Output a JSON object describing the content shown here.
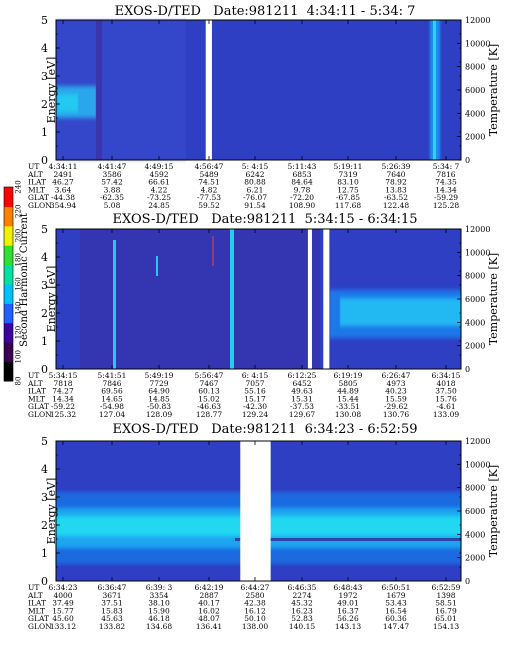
{
  "colorbar": {
    "label": "Second Harmonic Current",
    "ticks": [
      "80",
      "100",
      "120",
      "140",
      "160",
      "180",
      "200",
      "220",
      "240"
    ],
    "colors": [
      "#000000",
      "#3a0050",
      "#3c00a0",
      "#2060ff",
      "#00c0ff",
      "#00e0a0",
      "#30e030",
      "#f0f000",
      "#ff8000",
      "#ff0000"
    ]
  },
  "row_labels": [
    "UT",
    "ALT",
    "ILAT",
    "MLT",
    "GLAT",
    "GLON"
  ],
  "chart_data": [
    {
      "type": "heatmap",
      "title": "EXOS-D/TED   Date:981211  4:34:11 - 5:34: 7",
      "ylabel": "Energy [eV]",
      "y2label": "Temperature [K]",
      "ylim": [
        0,
        5
      ],
      "y2lim": [
        0,
        12000
      ],
      "yticks": [
        "0",
        "1",
        "2",
        "3",
        "4",
        "5"
      ],
      "y2ticks": [
        "0",
        "2000",
        "4000",
        "6000",
        "8000",
        "10000",
        "12000"
      ],
      "columns": [
        [
          "4:34:11",
          "2491",
          "46.27",
          "3.64",
          "-44.38",
          "354.94"
        ],
        [
          "4:41:47",
          "3586",
          "57.42",
          "3.88",
          "-62.35",
          "5.08"
        ],
        [
          "4:49:15",
          "4592",
          "66.61",
          "4.22",
          "-73.25",
          "24.85"
        ],
        [
          "4:56:47",
          "5489",
          "74.51",
          "4.82",
          "-77.53",
          "59.52"
        ],
        [
          "5: 4:15",
          "6242",
          "80.88",
          "6.21",
          "-76.07",
          "91.54"
        ],
        [
          "5:11:43",
          "6853",
          "84.64",
          "9.78",
          "-72.20",
          "108.90"
        ],
        [
          "5:19:11",
          "7319",
          "83.10",
          "12.75",
          "-67.85",
          "117.68"
        ],
        [
          "5:26:39",
          "7640",
          "78.92",
          "13.83",
          "-63.52",
          "122.48"
        ],
        [
          "5:34: 7",
          "7816",
          "74.35",
          "14.34",
          "-59.29",
          "125.28"
        ]
      ],
      "gaps_fraction": [
        [
          0.37,
          0.385
        ]
      ]
    },
    {
      "type": "heatmap",
      "title": "EXOS-D/TED   Date:981211  5:34:15 - 6:34:15",
      "ylabel": "Energy [eV]",
      "y2label": "Temperature [K]",
      "ylim": [
        0,
        5
      ],
      "y2lim": [
        0,
        12000
      ],
      "yticks": [
        "0",
        "1",
        "2",
        "3",
        "4",
        "5"
      ],
      "y2ticks": [
        "0",
        "2000",
        "4000",
        "6000",
        "8000",
        "10000",
        "12000"
      ],
      "columns": [
        [
          "5:34:15",
          "7818",
          "74.27",
          "14.34",
          "-59.22",
          "125.32"
        ],
        [
          "5:41:51",
          "7846",
          "69.56",
          "14.65",
          "-54.98",
          "127.04"
        ],
        [
          "5:49:19",
          "7729",
          "64.90",
          "14.85",
          "-50.83",
          "128.09"
        ],
        [
          "5:56:47",
          "7467",
          "60.13",
          "15.02",
          "-46.63",
          "128.77"
        ],
        [
          "6: 4:15",
          "7057",
          "55.16",
          "15.17",
          "-42.30",
          "129.24"
        ],
        [
          "6:12:25",
          "6452",
          "49.63",
          "15.31",
          "-37.53",
          "129.67"
        ],
        [
          "6:19:19",
          "5805",
          "44.89",
          "15.44",
          "-33.51",
          "130.08"
        ],
        [
          "6:26:47",
          "4973",
          "40.23",
          "15.59",
          "-29.62",
          "130.76"
        ],
        [
          "6:34:15",
          "4018",
          "37.50",
          "15.76",
          "-4.61",
          "133.09"
        ]
      ],
      "gaps_fraction": [
        [
          0.622,
          0.632
        ],
        [
          0.66,
          0.675
        ]
      ]
    },
    {
      "type": "heatmap",
      "title": "EXOS-D/TED   Date:981211  6:34:23 - 6:52:59",
      "ylabel": "Energy [eV]",
      "y2label": "Temperature [K]",
      "ylim": [
        0,
        5
      ],
      "y2lim": [
        0,
        12000
      ],
      "yticks": [
        "0",
        "1",
        "2",
        "3",
        "4",
        "5"
      ],
      "y2ticks": [
        "0",
        "2000",
        "4000",
        "6000",
        "8000",
        "10000",
        "12000"
      ],
      "columns": [
        [
          "6:34:23",
          "4000",
          "37.49",
          "15.77",
          "45.60",
          "133.12"
        ],
        [
          "6:36:47",
          "3671",
          "37.51",
          "15.83",
          "45.63",
          "133.82"
        ],
        [
          "6:39: 3",
          "3354",
          "38.10",
          "15.90",
          "46.18",
          "134.68"
        ],
        [
          "6:42:19",
          "2887",
          "40.17",
          "16.02",
          "48.07",
          "136.41"
        ],
        [
          "6:44:27",
          "2580",
          "42.38",
          "16.12",
          "50.10",
          "138.00"
        ],
        [
          "6:46:35",
          "2274",
          "45.32",
          "16.23",
          "52.83",
          "140.15"
        ],
        [
          "6:48:43",
          "1972",
          "49.01",
          "16.37",
          "56.26",
          "143.13"
        ],
        [
          "6:50:51",
          "1679",
          "53.43",
          "16.54",
          "60.36",
          "147.47"
        ],
        [
          "6:52:59",
          "1398",
          "58.51",
          "16.79",
          "65.01",
          "154.13"
        ]
      ],
      "gaps_fraction": [
        [
          0.455,
          0.53
        ]
      ]
    }
  ]
}
